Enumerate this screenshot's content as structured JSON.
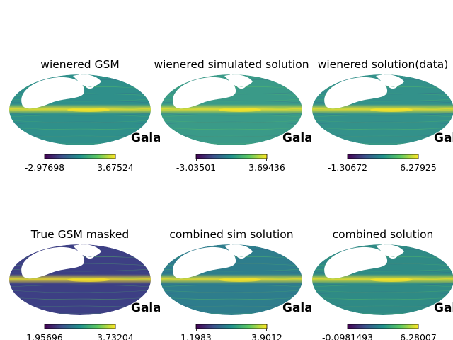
{
  "chart_data": [
    {
      "type": "heatmap",
      "title": "wienered GSM",
      "projection": "mollweide",
      "colormap": "viridis",
      "corner_label": "Galactic",
      "colorbar": {
        "min_label": "-2.97698",
        "max_label": "3.67524",
        "range": [
          -2.97698,
          3.67524
        ]
      }
    },
    {
      "type": "heatmap",
      "title": "wienered simulated solution",
      "projection": "mollweide",
      "colormap": "viridis",
      "corner_label": "Galactic",
      "colorbar": {
        "min_label": "-3.03501",
        "max_label": "3.69436",
        "range": [
          -3.03501,
          3.69436
        ]
      }
    },
    {
      "type": "heatmap",
      "title": "wienered solution(data)",
      "projection": "mollweide",
      "colormap": "viridis",
      "corner_label": "Galactic",
      "colorbar": {
        "min_label": "-1.30672",
        "max_label": "6.27925",
        "range": [
          -1.30672,
          6.27925
        ]
      }
    },
    {
      "type": "heatmap",
      "title": "True GSM masked",
      "projection": "mollweide",
      "colormap": "viridis",
      "corner_label": "Galactic",
      "colorbar": {
        "min_label": "1.95696",
        "max_label": "3.73204",
        "range": [
          1.95696,
          3.73204
        ]
      }
    },
    {
      "type": "heatmap",
      "title": "combined sim solution",
      "projection": "mollweide",
      "colormap": "viridis",
      "corner_label": "Galactic",
      "colorbar": {
        "min_label": "1.1983",
        "max_label": "3.9012",
        "range": [
          1.1983,
          3.9012
        ]
      }
    },
    {
      "type": "heatmap",
      "title": "combined solution",
      "projection": "mollweide",
      "colormap": "viridis",
      "corner_label": "Galactic",
      "colorbar": {
        "min_label": "-0.0981493",
        "max_label": "6.28007",
        "range": [
          -0.0981493,
          6.28007
        ]
      }
    }
  ],
  "colors": {
    "viridis_low": "#440154",
    "viridis_mid": "#21918c",
    "viridis_high": "#fde725",
    "mask": "#ffffff"
  }
}
